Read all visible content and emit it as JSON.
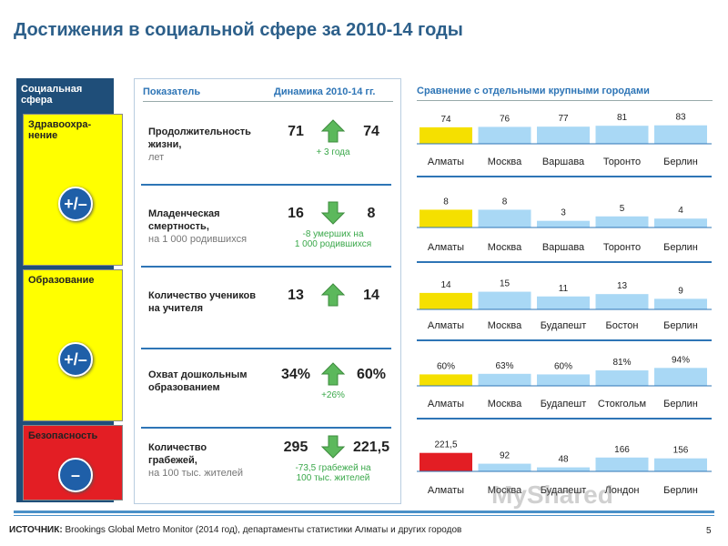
{
  "header": {
    "title": "Достижения в социальной сфере за 2010-14 годы"
  },
  "sidebar": {
    "title": "Социальная\nсфера",
    "sections": [
      {
        "label": "Здравоохра-\nнение",
        "status": "+/–",
        "color": "#ffff00"
      },
      {
        "label": "Образование",
        "status": "+/–",
        "color": "#ffff00"
      },
      {
        "label": "Безопасность",
        "status": "–",
        "color": "#e31e24"
      }
    ]
  },
  "table": {
    "headers": [
      "Показатель",
      "Динамика 2010-14 гг."
    ],
    "rows": [
      {
        "indicator": "Продолжительность\nжизни,",
        "unit": "лет",
        "start": "71",
        "end": "74",
        "change": "+ 3 года",
        "trend": "up"
      },
      {
        "indicator": "Младенческая\nсмертность,",
        "unit": "на 1 000 родившихся",
        "start": "16",
        "end": "8",
        "change": "-8 умерших на\n1 000 родившихся",
        "trend": "down"
      },
      {
        "indicator": "Количество учеников\nна учителя",
        "start": "13",
        "end": "14",
        "trend": "up"
      },
      {
        "indicator": "Охват дошкольным\nобразованием",
        "start": "34%",
        "end": "60%",
        "change": "+26%",
        "trend": "up"
      },
      {
        "indicator": "Количество\nграбежей,",
        "unit": "на 100 тыс. жителей",
        "start": "295",
        "end": "221,5",
        "change": "-73,5 грабежей на\n100 тыс. жителей",
        "trend": "down"
      }
    ]
  },
  "comparison": {
    "title": "Сравнение с отдельными крупными городами",
    "charts": [
      {
        "categories": [
          "Алматы",
          "Москва",
          "Варшава",
          "Торонто",
          "Берлин"
        ],
        "values": [
          74,
          76,
          77,
          81,
          83
        ],
        "ylim": [
          0,
          90
        ],
        "colors": [
          "#f5e000",
          "#a9d8f5",
          "#a9d8f5",
          "#a9d8f5",
          "#a9d8f5"
        ]
      },
      {
        "categories": [
          "Алматы",
          "Москва",
          "Варшава",
          "Торонто",
          "Берлин"
        ],
        "values": [
          8,
          8,
          3,
          5,
          4
        ],
        "ylim": [
          0,
          9
        ],
        "colors": [
          "#f5e000",
          "#a9d8f5",
          "#a9d8f5",
          "#a9d8f5",
          "#a9d8f5"
        ]
      },
      {
        "categories": [
          "Алматы",
          "Москва",
          "Будапешт",
          "Бостон",
          "Берлин"
        ],
        "values": [
          14,
          15,
          11,
          13,
          9
        ],
        "ylim": [
          0,
          17
        ],
        "colors": [
          "#f5e000",
          "#a9d8f5",
          "#a9d8f5",
          "#a9d8f5",
          "#a9d8f5"
        ]
      },
      {
        "categories": [
          "Алматы",
          "Москва",
          "Будапешт",
          "Стокгольм",
          "Берлин"
        ],
        "values": [
          60,
          63,
          60,
          81,
          94
        ],
        "value_labels": [
          "60%",
          "63%",
          "60%",
          "81%",
          "94%"
        ],
        "ylim": [
          0,
          105
        ],
        "colors": [
          "#f5e000",
          "#a9d8f5",
          "#a9d8f5",
          "#a9d8f5",
          "#a9d8f5"
        ]
      },
      {
        "categories": [
          "Алматы",
          "Москва",
          "Будапешт",
          "Лондон",
          "Берлин"
        ],
        "values": [
          221.5,
          92,
          48,
          166,
          156
        ],
        "value_labels": [
          "221,5",
          "92",
          "48",
          "166",
          "156"
        ],
        "ylim": [
          0,
          240
        ],
        "colors": [
          "#e31e24",
          "#a9d8f5",
          "#a9d8f5",
          "#a9d8f5",
          "#a9d8f5"
        ]
      }
    ]
  },
  "footer": {
    "source_label": "ИСТОЧНИК:",
    "source": "Brookings Global Metro Monitor (2014 год), департаменты статистики Алматы и других городов",
    "page": "5",
    "watermark": "MyShared"
  }
}
